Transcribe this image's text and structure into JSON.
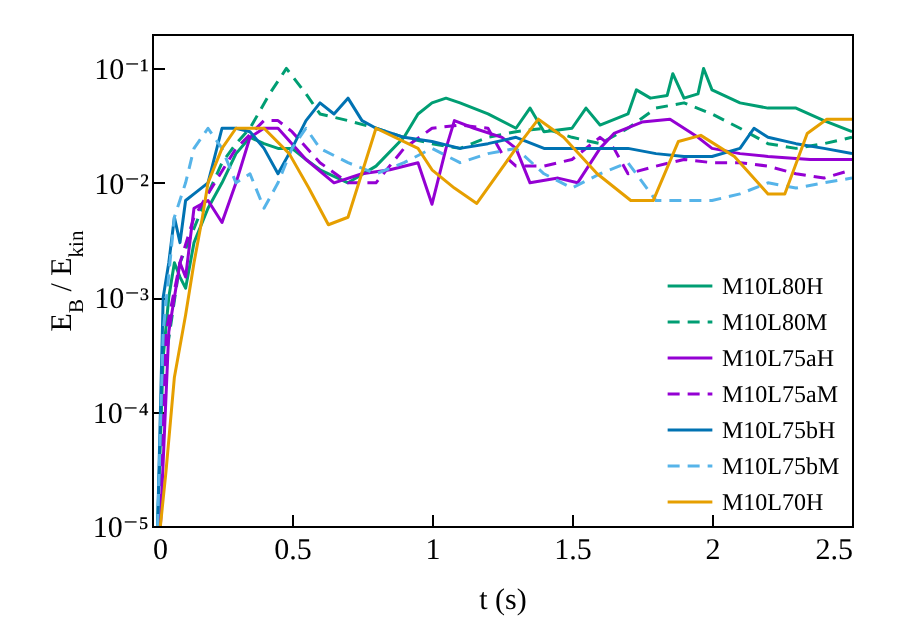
{
  "chart_data": {
    "type": "line",
    "xlabel": "t (s)",
    "ylabel": "E$_{B}$ / E$_{kin}$",
    "log": "y",
    "xlim": [
      0,
      2.5
    ],
    "xticks": [
      0,
      0.5,
      1,
      1.5,
      2,
      2.5
    ],
    "ylim": [
      1e-05,
      0.2
    ],
    "yticks": [
      {
        "value": 1e-05,
        "label": "10⁻⁵"
      },
      {
        "value": 0.0001,
        "label": "10⁻⁴"
      },
      {
        "value": 0.001,
        "label": "10⁻³"
      },
      {
        "value": 0.01,
        "label": "10⁻²"
      },
      {
        "value": 0.1,
        "label": "10⁻¹"
      }
    ],
    "legend": "bottom right",
    "grid": false,
    "series": [
      {
        "name": "M10L80H",
        "color": "#009e73",
        "line_style": "solid",
        "x": [
          0.02,
          0.04,
          0.06,
          0.08,
          0.1,
          0.12,
          0.15,
          0.2,
          0.25,
          0.3,
          0.35,
          0.4,
          0.45,
          0.5,
          0.55,
          0.6,
          0.7,
          0.8,
          0.9,
          0.95,
          1.0,
          1.05,
          1.1,
          1.2,
          1.3,
          1.35,
          1.4,
          1.5,
          1.55,
          1.6,
          1.7,
          1.73,
          1.78,
          1.84,
          1.86,
          1.9,
          1.95,
          1.97,
          2.0,
          2.1,
          2.2,
          2.3,
          2.4,
          2.5
        ],
        "values": [
          1e-05,
          0.0003,
          0.001,
          0.002,
          0.0015,
          0.0012,
          0.003,
          0.006,
          0.01,
          0.018,
          0.025,
          0.022,
          0.02,
          0.02,
          0.016,
          0.013,
          0.01,
          0.014,
          0.025,
          0.04,
          0.05,
          0.055,
          0.05,
          0.04,
          0.03,
          0.045,
          0.028,
          0.03,
          0.045,
          0.032,
          0.04,
          0.065,
          0.055,
          0.058,
          0.09,
          0.055,
          0.06,
          0.1,
          0.065,
          0.05,
          0.045,
          0.045,
          0.035,
          0.028
        ]
      },
      {
        "name": "M10L80M",
        "color": "#009e73",
        "line_style": "dashed",
        "x": [
          0.02,
          0.05,
          0.1,
          0.15,
          0.2,
          0.25,
          0.3,
          0.35,
          0.42,
          0.48,
          0.55,
          0.6,
          0.7,
          0.8,
          0.9,
          1.0,
          1.1,
          1.2,
          1.3,
          1.4,
          1.5,
          1.6,
          1.7,
          1.8,
          1.9,
          2.0,
          2.1,
          2.2,
          2.3,
          2.4,
          2.5
        ],
        "values": [
          1e-05,
          0.0003,
          0.002,
          0.004,
          0.008,
          0.015,
          0.022,
          0.03,
          0.06,
          0.1,
          0.06,
          0.04,
          0.035,
          0.03,
          0.025,
          0.022,
          0.02,
          0.025,
          0.028,
          0.03,
          0.025,
          0.022,
          0.03,
          0.045,
          0.05,
          0.04,
          0.03,
          0.022,
          0.02,
          0.022,
          0.025
        ]
      },
      {
        "name": "M10L75aH",
        "color": "#9400d3",
        "line_style": "solid",
        "x": [
          0.03,
          0.06,
          0.1,
          0.12,
          0.15,
          0.2,
          0.25,
          0.3,
          0.35,
          0.4,
          0.45,
          0.55,
          0.65,
          0.75,
          0.85,
          0.95,
          1.0,
          1.05,
          1.08,
          1.15,
          1.25,
          1.3,
          1.35,
          1.45,
          1.52,
          1.6,
          1.65,
          1.75,
          1.85,
          1.95,
          2.0,
          2.1,
          2.2,
          2.35,
          2.5
        ],
        "values": [
          1e-05,
          0.0005,
          0.002,
          0.0015,
          0.006,
          0.007,
          0.0045,
          0.01,
          0.025,
          0.03,
          0.03,
          0.016,
          0.01,
          0.012,
          0.013,
          0.015,
          0.0065,
          0.02,
          0.035,
          0.03,
          0.025,
          0.02,
          0.01,
          0.011,
          0.01,
          0.02,
          0.027,
          0.034,
          0.036,
          0.025,
          0.02,
          0.018,
          0.017,
          0.016,
          0.016
        ]
      },
      {
        "name": "M10L75aM",
        "color": "#9400d3",
        "line_style": "dashed",
        "x": [
          0.03,
          0.05,
          0.1,
          0.15,
          0.2,
          0.3,
          0.4,
          0.45,
          0.5,
          0.6,
          0.7,
          0.8,
          0.9,
          1.0,
          1.1,
          1.2,
          1.25,
          1.3,
          1.4,
          1.5,
          1.6,
          1.65,
          1.7,
          1.8,
          1.9,
          2.0,
          2.1,
          2.2,
          2.3,
          2.4,
          2.5
        ],
        "values": [
          1e-05,
          0.0005,
          0.002,
          0.005,
          0.008,
          0.02,
          0.035,
          0.035,
          0.028,
          0.015,
          0.01,
          0.01,
          0.02,
          0.03,
          0.032,
          0.03,
          0.018,
          0.014,
          0.014,
          0.016,
          0.025,
          0.02,
          0.012,
          0.014,
          0.016,
          0.015,
          0.015,
          0.014,
          0.012,
          0.011,
          0.013
        ]
      },
      {
        "name": "M10L75bH",
        "color": "#0072b2",
        "line_style": "solid",
        "x": [
          0.02,
          0.04,
          0.06,
          0.08,
          0.1,
          0.12,
          0.15,
          0.2,
          0.25,
          0.3,
          0.35,
          0.4,
          0.45,
          0.5,
          0.55,
          0.6,
          0.65,
          0.7,
          0.75,
          0.8,
          0.9,
          1.0,
          1.1,
          1.2,
          1.3,
          1.4,
          1.5,
          1.6,
          1.7,
          1.8,
          1.9,
          2.0,
          2.1,
          2.15,
          2.2,
          2.3,
          2.4,
          2.5
        ],
        "values": [
          1e-05,
          0.001,
          0.002,
          0.005,
          0.003,
          0.007,
          0.008,
          0.01,
          0.03,
          0.03,
          0.028,
          0.02,
          0.012,
          0.02,
          0.035,
          0.05,
          0.04,
          0.055,
          0.035,
          0.03,
          0.025,
          0.023,
          0.02,
          0.022,
          0.025,
          0.02,
          0.02,
          0.02,
          0.02,
          0.018,
          0.017,
          0.017,
          0.02,
          0.03,
          0.025,
          0.022,
          0.02,
          0.018
        ]
      },
      {
        "name": "M10L75bM",
        "color": "#56b4e9",
        "line_style": "dashed",
        "x": [
          0.02,
          0.04,
          0.08,
          0.12,
          0.15,
          0.2,
          0.25,
          0.3,
          0.35,
          0.4,
          0.45,
          0.5,
          0.55,
          0.6,
          0.7,
          0.8,
          0.9,
          1.0,
          1.1,
          1.2,
          1.3,
          1.4,
          1.5,
          1.6,
          1.7,
          1.8,
          1.9,
          2.0,
          2.1,
          2.2,
          2.3,
          2.4,
          2.5
        ],
        "values": [
          1e-05,
          0.0005,
          0.005,
          0.01,
          0.02,
          0.03,
          0.02,
          0.01,
          0.012,
          0.006,
          0.01,
          0.02,
          0.03,
          0.02,
          0.015,
          0.012,
          0.015,
          0.02,
          0.015,
          0.018,
          0.02,
          0.012,
          0.009,
          0.012,
          0.015,
          0.007,
          0.007,
          0.007,
          0.008,
          0.01,
          0.009,
          0.01,
          0.011
        ]
      },
      {
        "name": "M10L70H",
        "color": "#e69f00",
        "line_style": "solid",
        "x": [
          0.03,
          0.05,
          0.08,
          0.12,
          0.15,
          0.18,
          0.2,
          0.25,
          0.3,
          0.4,
          0.49,
          0.56,
          0.63,
          0.7,
          0.8,
          0.95,
          1.0,
          1.08,
          1.16,
          1.3,
          1.38,
          1.47,
          1.59,
          1.71,
          1.79,
          1.88,
          1.96,
          2.08,
          2.2,
          2.26,
          2.34,
          2.41,
          2.5
        ],
        "values": [
          1e-05,
          3e-05,
          0.0002,
          0.0007,
          0.002,
          0.005,
          0.01,
          0.02,
          0.03,
          0.03,
          0.018,
          0.009,
          0.0043,
          0.005,
          0.03,
          0.02,
          0.013,
          0.009,
          0.0066,
          0.02,
          0.036,
          0.025,
          0.012,
          0.007,
          0.007,
          0.023,
          0.026,
          0.017,
          0.008,
          0.008,
          0.027,
          0.036,
          0.036
        ]
      }
    ]
  }
}
